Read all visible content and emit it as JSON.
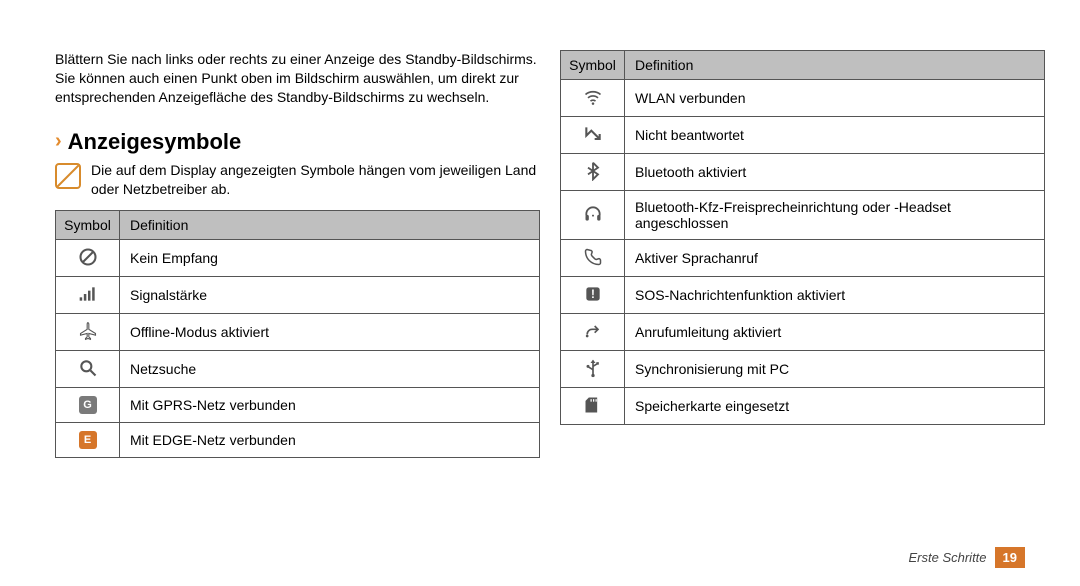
{
  "intro": "Blättern Sie nach links oder rechts zu einer Anzeige des Standby-Bildschirms. Sie können auch einen Punkt oben im Bildschirm auswählen, um direkt zur entsprechenden Anzeigefläche des Standby-Bildschirms zu wechseln.",
  "section_title": "Anzeigesymbole",
  "note": "Die auf dem Display angezeigten Symbole hängen vom jeweiligen Land oder Netzbetreiber ab.",
  "table_headers": {
    "symbol": "Symbol",
    "definition": "Definition"
  },
  "left_rows": [
    {
      "icon": "no-signal",
      "def": "Kein Empfang"
    },
    {
      "icon": "signal-bars",
      "def": "Signalstärke"
    },
    {
      "icon": "airplane",
      "def": "Offline-Modus aktiviert"
    },
    {
      "icon": "search",
      "def": "Netzsuche"
    },
    {
      "icon": "gprs",
      "def": "Mit GPRS-Netz verbunden"
    },
    {
      "icon": "edge",
      "def": "Mit EDGE-Netz verbunden"
    }
  ],
  "right_rows": [
    {
      "icon": "wifi",
      "def": "WLAN verbunden"
    },
    {
      "icon": "missed",
      "def": "Nicht beantwortet"
    },
    {
      "icon": "bluetooth",
      "def": "Bluetooth aktiviert"
    },
    {
      "icon": "bt-headset",
      "def": "Bluetooth-Kfz-Freisprecheinrichtung oder -Headset angeschlossen"
    },
    {
      "icon": "call",
      "def": "Aktiver Sprachanruf"
    },
    {
      "icon": "sos",
      "def": "SOS-Nachrichtenfunktion aktiviert"
    },
    {
      "icon": "forward",
      "def": "Anrufumleitung aktiviert"
    },
    {
      "icon": "usb",
      "def": "Synchronisierung mit PC"
    },
    {
      "icon": "sdcard",
      "def": "Speicherkarte eingesetzt"
    }
  ],
  "footer_text": "Erste Schritte",
  "page_number": "19",
  "colors": {
    "accent": "#d6762a",
    "header_bg": "#bfbfbf",
    "border": "#555555"
  }
}
